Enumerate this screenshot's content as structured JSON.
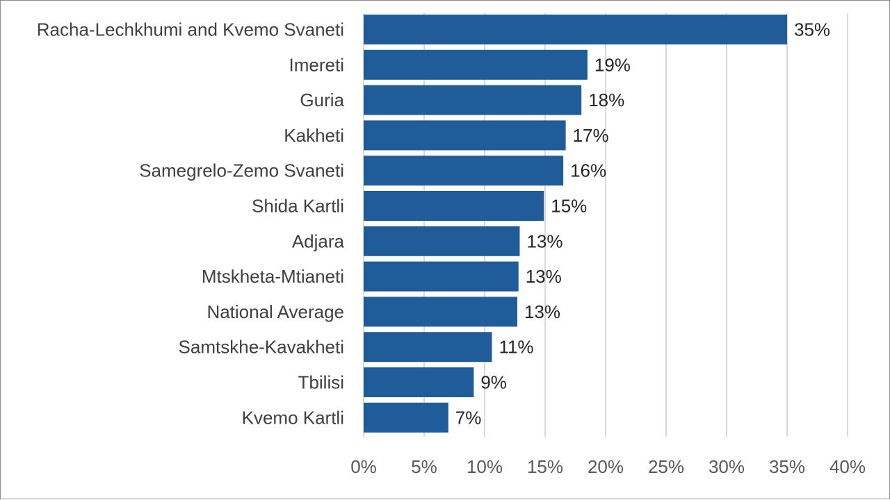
{
  "chart_data": {
    "type": "bar",
    "orientation": "horizontal",
    "title": "",
    "xlabel": "",
    "ylabel": "",
    "categories": [
      "Racha-Lechkhumi and Kvemo Svaneti",
      "Imereti",
      "Guria",
      "Kakheti",
      "Samegrelo-Zemo Svaneti",
      "Shida Kartli",
      "Adjara",
      "Mtskheta-Mtianeti",
      "National Average",
      "Samtskhe-Kavakheti",
      "Tbilisi",
      "Kvemo Kartli"
    ],
    "values": [
      35,
      18.5,
      18,
      16.7,
      16.5,
      14.9,
      12.9,
      12.8,
      12.7,
      10.6,
      9.1,
      7
    ],
    "value_labels": [
      "35%",
      "19%",
      "18%",
      "17%",
      "16%",
      "15%",
      "13%",
      "13%",
      "13%",
      "11%",
      "9%",
      "7%"
    ],
    "xlim": [
      0,
      40
    ],
    "x_ticks": [
      0,
      5,
      10,
      15,
      20,
      25,
      30,
      35,
      40
    ],
    "x_tick_labels": [
      "0%",
      "5%",
      "10%",
      "15%",
      "20%",
      "25%",
      "30%",
      "35%",
      "40%"
    ],
    "grid": "vertical",
    "legend": "none",
    "bar_color": "#1f5c99"
  }
}
